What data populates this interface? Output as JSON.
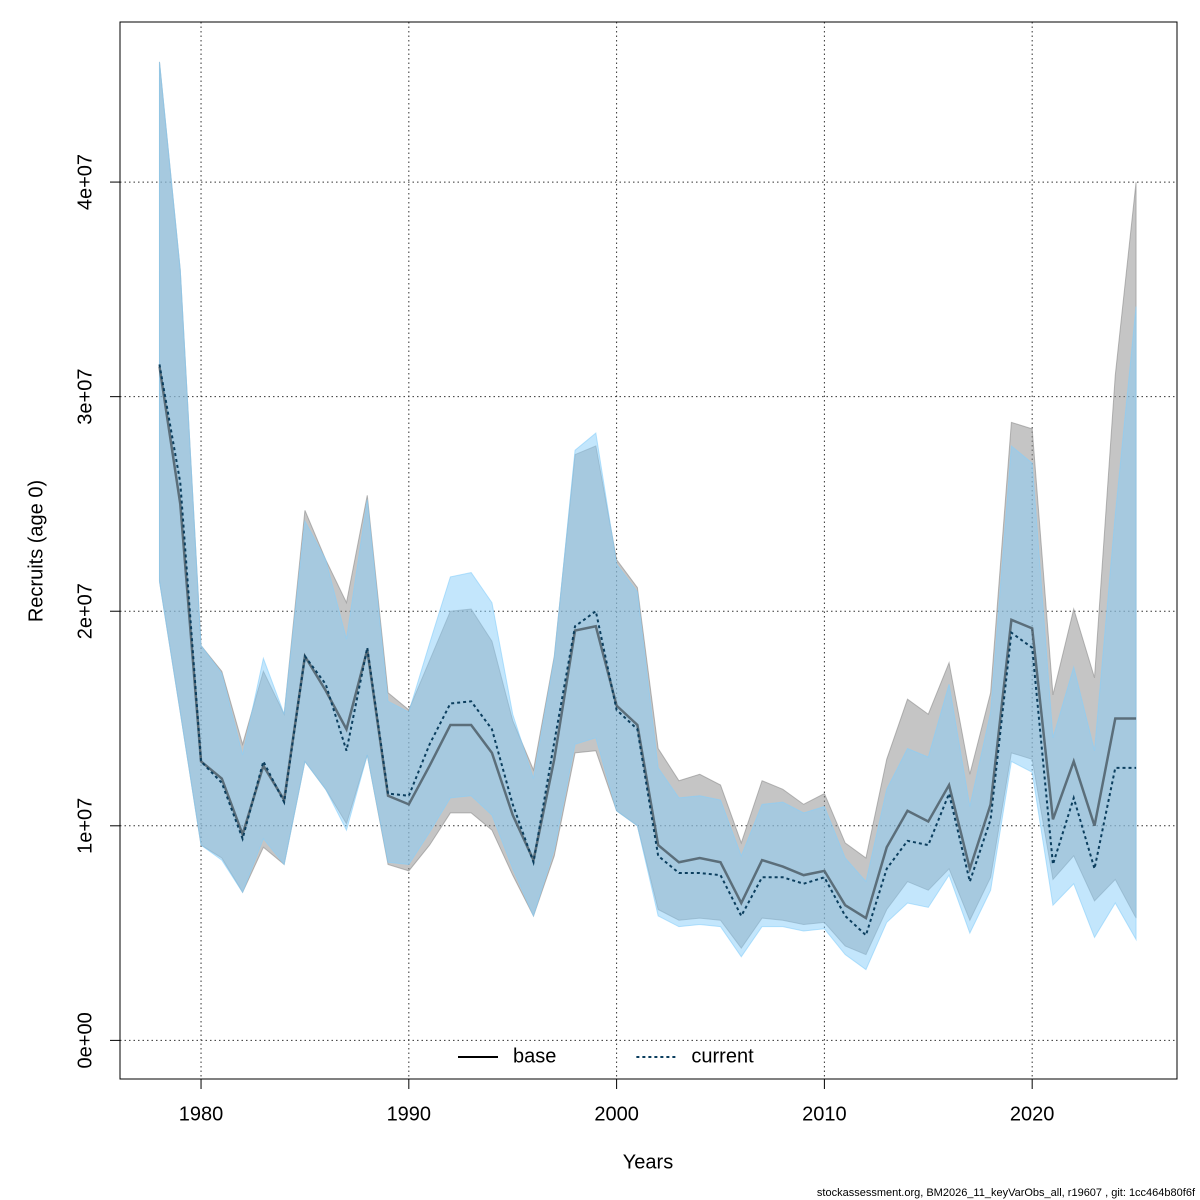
{
  "chart_data": {
    "type": "line-band",
    "x_label": "Years",
    "y_label": "Recruits (age 0)",
    "footer": "stockassessment.org, BM2026_11_keyVarObs_all, r19607 , git: 1cc464b80f6f",
    "xlim": [
      1976.1,
      2026.97
    ],
    "ylim": [
      -1800000,
      47460000
    ],
    "xticks": [
      1980,
      1990,
      2000,
      2010,
      2020
    ],
    "yticks": [
      {
        "value": 0,
        "label": "0e+00"
      },
      {
        "value": 10000000,
        "label": "1e+07"
      },
      {
        "value": 20000000,
        "label": "2e+07"
      },
      {
        "value": 30000000,
        "label": "3e+07"
      },
      {
        "value": 40000000,
        "label": "4e+07"
      }
    ],
    "grid": true,
    "legend_position": "bottom",
    "x": [
      1978,
      1979,
      1980,
      1981,
      1982,
      1983,
      1984,
      1985,
      1986,
      1987,
      1988,
      1989,
      1990,
      1991,
      1992,
      1993,
      1994,
      1995,
      1996,
      1997,
      1998,
      1999,
      2000,
      2001,
      2002,
      2003,
      2004,
      2005,
      2006,
      2007,
      2008,
      2009,
      2010,
      2011,
      2012,
      2013,
      2014,
      2015,
      2016,
      2017,
      2018,
      2019,
      2020,
      2021,
      2022,
      2023,
      2024,
      2025
    ],
    "series": [
      {
        "name": "base",
        "color": "#000000",
        "band_color": "#8c8c8c",
        "dash": "solid",
        "values": [
          31400000.0,
          25000000.0,
          13000000.0,
          12200000.0,
          9600000.0,
          12800000.0,
          11200000.0,
          17900000.0,
          16300000.0,
          14500000.0,
          18200000.0,
          11400000.0,
          11000000.0,
          12800000.0,
          14700000.0,
          14700000.0,
          13400000.0,
          10500000.0,
          8400000.0,
          13100000.0,
          19100000.0,
          19300000.0,
          15600000.0,
          14700000.0,
          9100000.0,
          8300000.0,
          8500000.0,
          8300000.0,
          6400000.0,
          8400000.0,
          8100000.0,
          7700000.0,
          7900000.0,
          6300000.0,
          5700000.0,
          9000000.0,
          10700000.0,
          10200000.0,
          11900000.0,
          8000000.0,
          11000000.0,
          19600000.0,
          19200000.0,
          10300000.0,
          13000000.0,
          10000000.0,
          15000000.0,
          15000000.0
        ],
        "lower": [
          21400000.0,
          15300000.0,
          9100000.0,
          8500000.0,
          6900000.0,
          9000000.0,
          8200000.0,
          13000000.0,
          11700000.0,
          10100000.0,
          13300000.0,
          8200000.0,
          7900000.0,
          9100000.0,
          10600000.0,
          10600000.0,
          9800000.0,
          7700000.0,
          5800000.0,
          8600000.0,
          13400000.0,
          13500000.0,
          10700000.0,
          10000000.0,
          6100000.0,
          5600000.0,
          5700000.0,
          5600000.0,
          4300000.0,
          5700000.0,
          5600000.0,
          5400000.0,
          5500000.0,
          4400000.0,
          4000000.0,
          6100000.0,
          7400000.0,
          7000000.0,
          8000000.0,
          5600000.0,
          7600000.0,
          13400000.0,
          13100000.0,
          7500000.0,
          8600000.0,
          6500000.0,
          7500000.0,
          5700000.0
        ],
        "upper": [
          45600000.0,
          35900000.0,
          18400000.0,
          17200000.0,
          13800000.0,
          17200000.0,
          15200000.0,
          24700000.0,
          22400000.0,
          20400000.0,
          25400000.0,
          16200000.0,
          15400000.0,
          17700000.0,
          20000000.0,
          20100000.0,
          18600000.0,
          14900000.0,
          12600000.0,
          17900000.0,
          27300000.0,
          27700000.0,
          22400000.0,
          21100000.0,
          13600000.0,
          12100000.0,
          12400000.0,
          11900000.0,
          9200000.0,
          12100000.0,
          11700000.0,
          11000000.0,
          11500000.0,
          9200000.0,
          8500000.0,
          13100000.0,
          15900000.0,
          15200000.0,
          17600000.0,
          12400000.0,
          16200000.0,
          28800000.0,
          28500000.0,
          16100000.0,
          20100000.0,
          16900000.0,
          31000000.0,
          40000000.0
        ]
      },
      {
        "name": "current",
        "color": "#0b3e5e",
        "band_color": "#87cefa",
        "dash": "dotted",
        "values": [
          31500000.0,
          26000000.0,
          13000000.0,
          12000000.0,
          9400000.0,
          13000000.0,
          11100000.0,
          17900000.0,
          16600000.0,
          13500000.0,
          18300000.0,
          11500000.0,
          11400000.0,
          13800000.0,
          15700000.0,
          15800000.0,
          14500000.0,
          11000000.0,
          8300000.0,
          13900000.0,
          19300000.0,
          20000000.0,
          15400000.0,
          14500000.0,
          8600000.0,
          7800000.0,
          7800000.0,
          7700000.0,
          5800000.0,
          7600000.0,
          7600000.0,
          7300000.0,
          7600000.0,
          5800000.0,
          4900000.0,
          8000000.0,
          9300000.0,
          9100000.0,
          11500000.0,
          7400000.0,
          10300000.0,
          19000000.0,
          18300000.0,
          8200000.0,
          11300000.0,
          8000000.0,
          12700000.0,
          12700000.0
        ],
        "lower": [
          21400000.0,
          15300000.0,
          9100000.0,
          8400000.0,
          6900000.0,
          9400000.0,
          8200000.0,
          13000000.0,
          11700000.0,
          9800000.0,
          13300000.0,
          8300000.0,
          8200000.0,
          9700000.0,
          11300000.0,
          11400000.0,
          10500000.0,
          8000000.0,
          5800000.0,
          8900000.0,
          13800000.0,
          14100000.0,
          10700000.0,
          10000000.0,
          5800000.0,
          5300000.0,
          5400000.0,
          5300000.0,
          3900000.0,
          5300000.0,
          5300000.0,
          5100000.0,
          5200000.0,
          4000000.0,
          3300000.0,
          5500000.0,
          6400000.0,
          6200000.0,
          7700000.0,
          5000000.0,
          7000000.0,
          13000000.0,
          12500000.0,
          6300000.0,
          7300000.0,
          4800000.0,
          6400000.0,
          4700000.0
        ],
        "upper": [
          45600000.0,
          35900000.0,
          18400000.0,
          17100000.0,
          13300000.0,
          17800000.0,
          15200000.0,
          24200000.0,
          22400000.0,
          18700000.0,
          25200000.0,
          15800000.0,
          15300000.0,
          18500000.0,
          21600000.0,
          21800000.0,
          20400000.0,
          15200000.0,
          12200000.0,
          17800000.0,
          27500000.0,
          28300000.0,
          22200000.0,
          20900000.0,
          12700000.0,
          11300000.0,
          11400000.0,
          11200000.0,
          8600000.0,
          11000000.0,
          11100000.0,
          10600000.0,
          10900000.0,
          8500000.0,
          7400000.0,
          11700000.0,
          13600000.0,
          13200000.0,
          16600000.0,
          10900000.0,
          15300000.0,
          27700000.0,
          26900000.0,
          14100000.0,
          17400000.0,
          13500000.0,
          24500000.0,
          34200000.0
        ]
      }
    ]
  }
}
